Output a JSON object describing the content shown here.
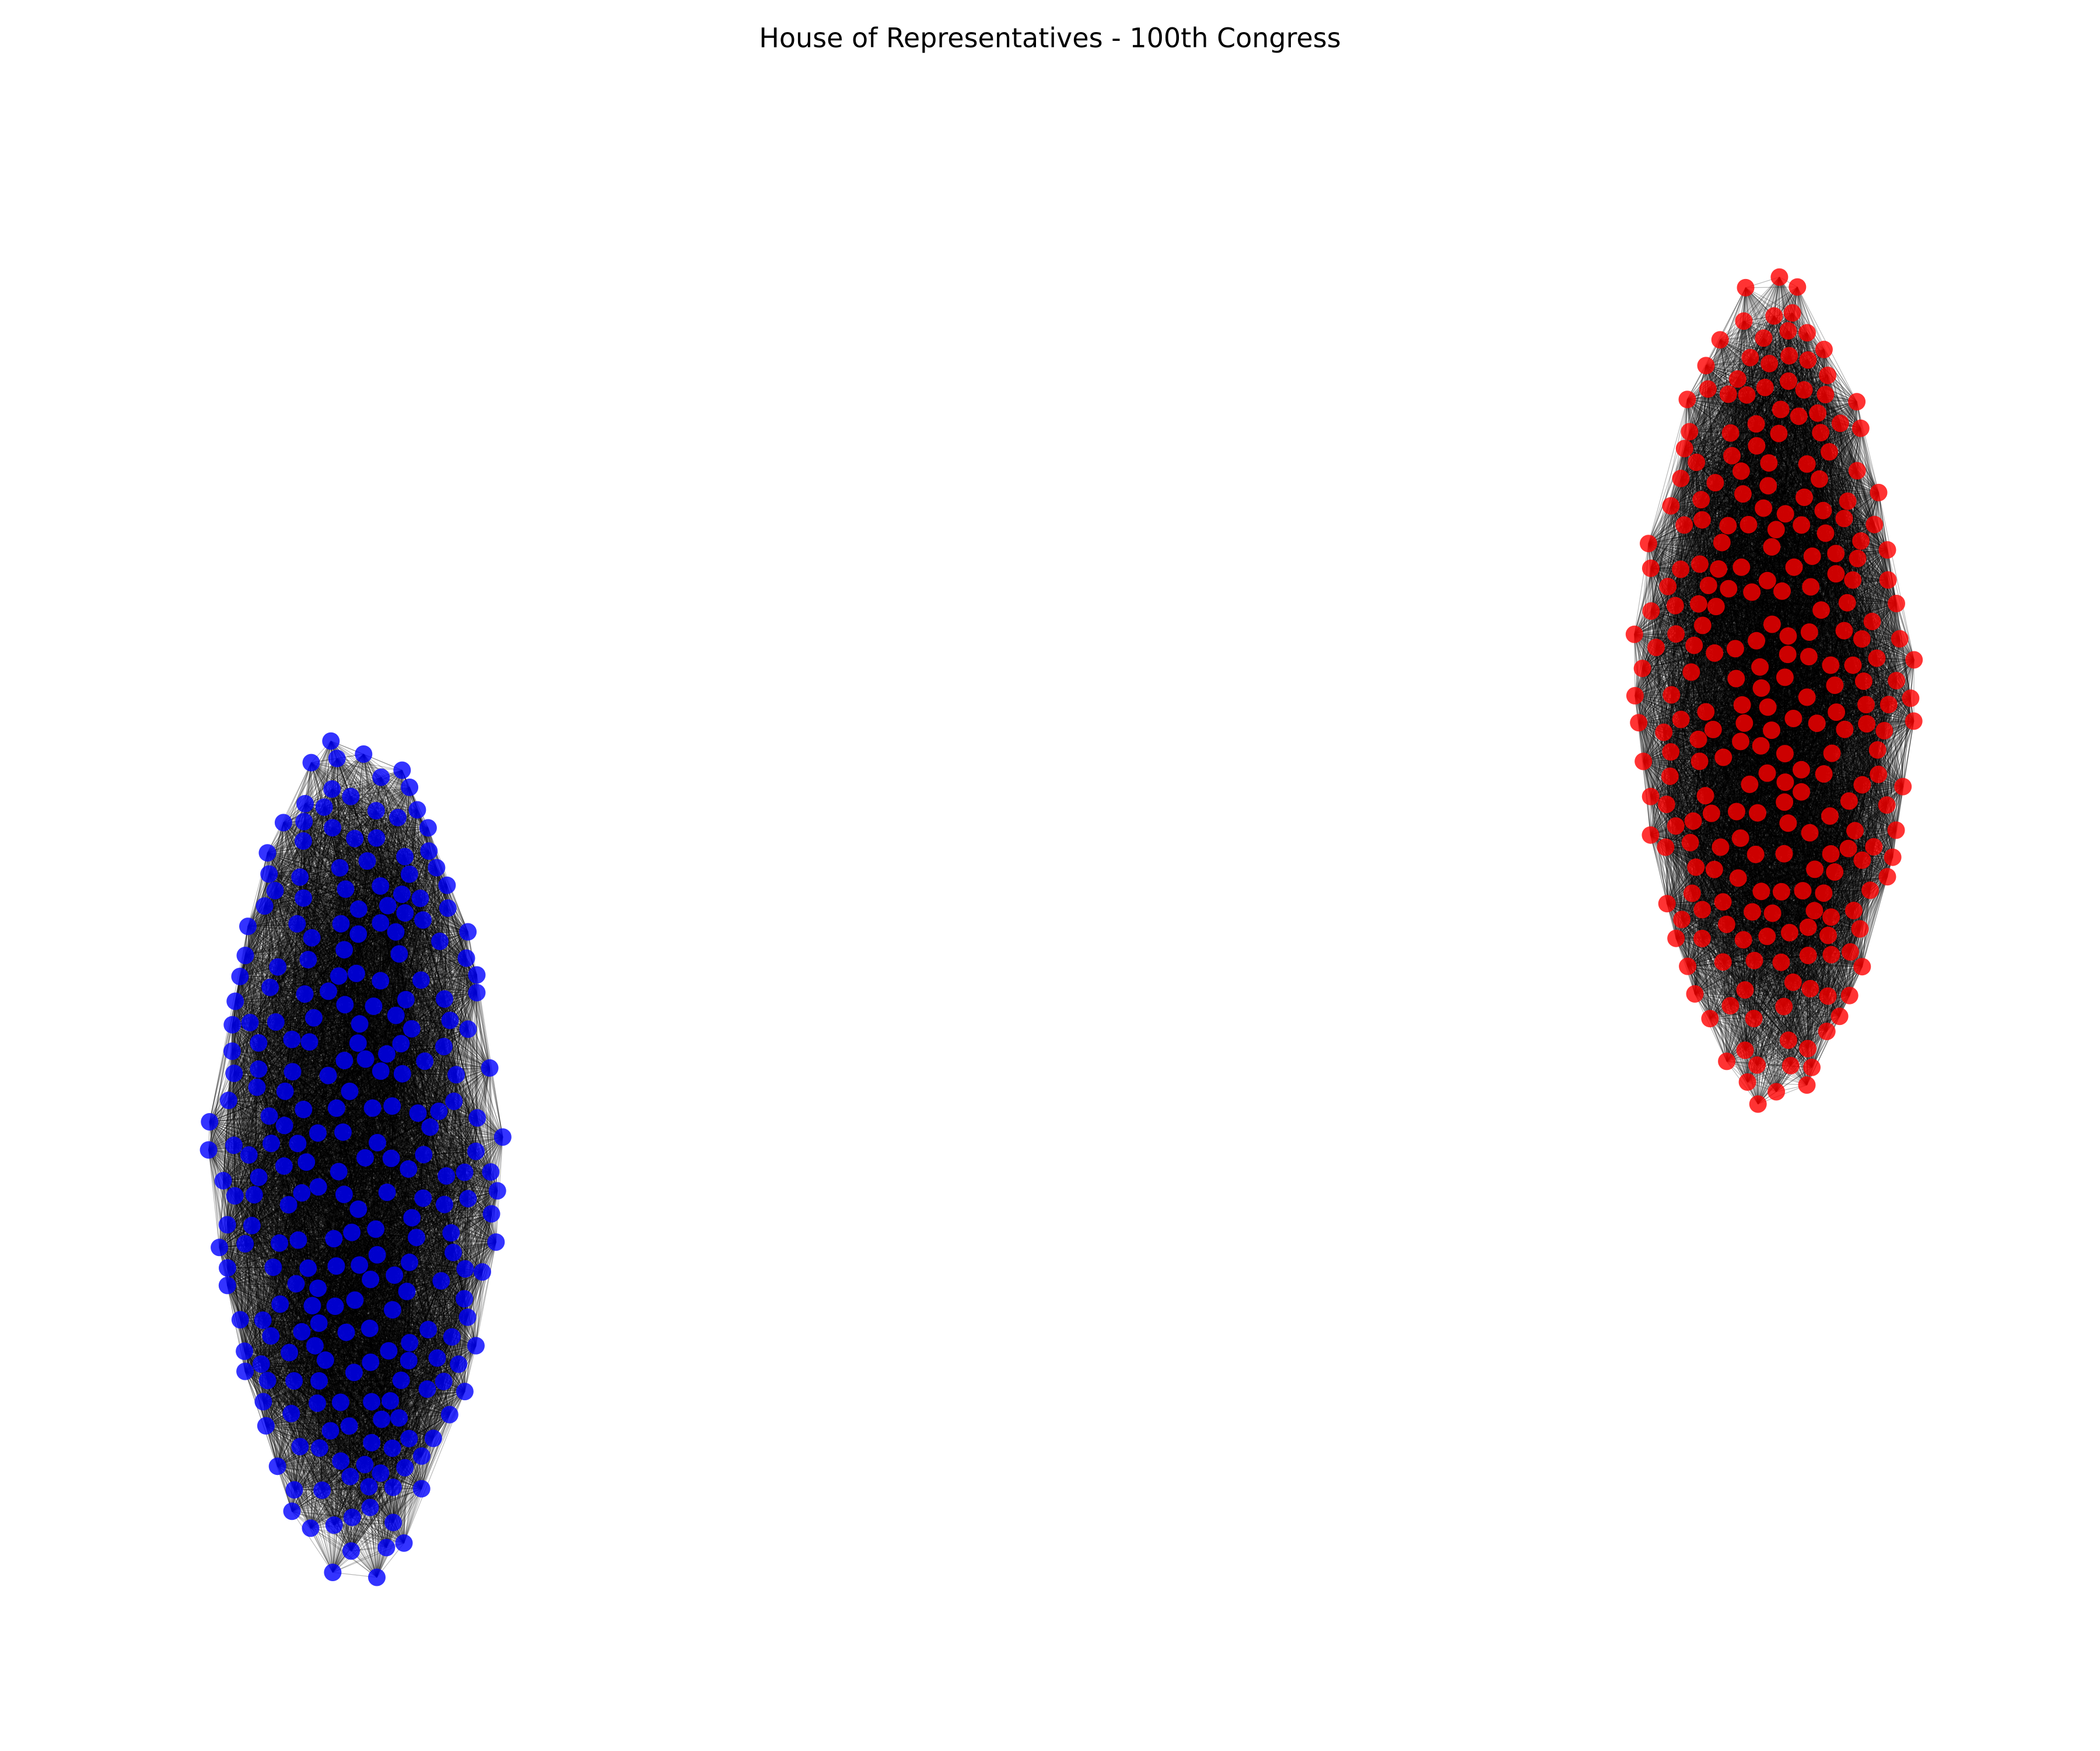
{
  "title": "House of Representatives - 100th Congress",
  "graph": {
    "type": "network",
    "edge_color": "#000000",
    "node_opacity": 0.8,
    "groups": [
      {
        "color": "#0000ff",
        "node_count": 260
      },
      {
        "color": "#ff0000",
        "node_count": 260
      }
    ]
  }
}
